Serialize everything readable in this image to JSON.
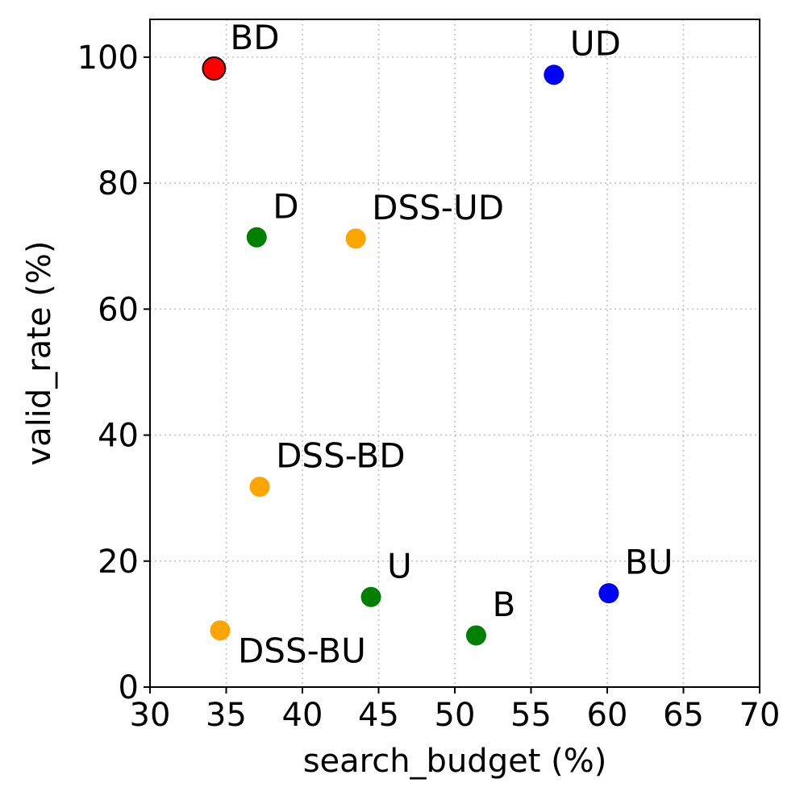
{
  "chart_data": {
    "type": "scatter",
    "title": "",
    "xlabel": "search_budget (%)",
    "ylabel": "valid_rate (%)",
    "xlim": [
      30,
      70
    ],
    "ylim": [
      0,
      106
    ],
    "xticks": [
      30,
      35,
      40,
      45,
      50,
      55,
      60,
      65,
      70
    ],
    "yticks": [
      0,
      20,
      40,
      60,
      80,
      100
    ],
    "grid": true,
    "legend": "none",
    "points": [
      {
        "label": "BD",
        "x": 34.2,
        "y": 98.2,
        "color": "#ff0000",
        "highlight": true,
        "label_position": "upper-right"
      },
      {
        "label": "UD",
        "x": 56.5,
        "y": 97.2,
        "color": "#0000ff",
        "label_position": "upper-right"
      },
      {
        "label": "D",
        "x": 37.0,
        "y": 71.4,
        "color": "#008000",
        "label_position": "upper-right"
      },
      {
        "label": "DSS-UD",
        "x": 43.5,
        "y": 71.2,
        "color": "#ffa500",
        "label_position": "upper-right"
      },
      {
        "label": "DSS-BD",
        "x": 37.2,
        "y": 31.8,
        "color": "#ffa500",
        "label_position": "upper-right"
      },
      {
        "label": "BU",
        "x": 60.1,
        "y": 14.9,
        "color": "#0000ff",
        "label_position": "upper-right"
      },
      {
        "label": "U",
        "x": 44.5,
        "y": 14.3,
        "color": "#008000",
        "label_position": "upper-right"
      },
      {
        "label": "B",
        "x": 51.4,
        "y": 8.2,
        "color": "#008000",
        "label_position": "upper-right"
      },
      {
        "label": "DSS-BU",
        "x": 34.6,
        "y": 9.0,
        "color": "#ffa500",
        "label_position": "lower-right"
      }
    ]
  }
}
